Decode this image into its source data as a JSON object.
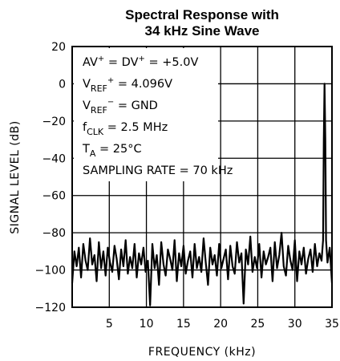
{
  "chart_data": {
    "type": "line",
    "title": [
      "Spectral Response with",
      "34 kHz Sine Wave"
    ],
    "xlabel": "FREQUENCY (kHz)",
    "ylabel": "SIGNAL LEVEL (dB)",
    "xlim": [
      0,
      35
    ],
    "ylim": [
      -120,
      20
    ],
    "xticks": [
      5,
      10,
      15,
      20,
      25,
      30,
      35
    ],
    "yticks": [
      20,
      0,
      -20,
      -40,
      -60,
      -80,
      -100,
      -120
    ],
    "grid": true,
    "annotations": [
      {
        "parts": [
          [
            "AV",
            ""
          ],
          [
            "+",
            "sup"
          ],
          [
            " = DV",
            ""
          ],
          [
            "+",
            "sup"
          ],
          [
            " = +5.0V",
            ""
          ]
        ]
      },
      {
        "parts": [
          [
            "V",
            ""
          ],
          [
            "REF",
            "sub"
          ],
          [
            "+",
            "sup"
          ],
          [
            " = 4.096V",
            ""
          ]
        ]
      },
      {
        "parts": [
          [
            "V",
            ""
          ],
          [
            "REF",
            "sub"
          ],
          [
            "−",
            "sup"
          ],
          [
            " = GND",
            ""
          ]
        ]
      },
      {
        "parts": [
          [
            "f",
            ""
          ],
          [
            "CLK",
            "sub"
          ],
          [
            " = 2.5 MHz",
            ""
          ]
        ]
      },
      {
        "parts": [
          [
            "T",
            ""
          ],
          [
            "A",
            "sub"
          ],
          [
            " = 25°C",
            ""
          ]
        ]
      },
      {
        "parts": [
          [
            "SAMPLING RATE = 70 kHz",
            ""
          ]
        ]
      }
    ],
    "series": [
      {
        "x": [
          0.0,
          0.3,
          0.6,
          0.9,
          1.2,
          1.5,
          1.8,
          2.1,
          2.4,
          2.7,
          3.0,
          3.3,
          3.6,
          3.9,
          4.2,
          4.5,
          4.8,
          5.1,
          5.4,
          5.7,
          6.0,
          6.3,
          6.6,
          6.9,
          7.2,
          7.5,
          7.8,
          8.1,
          8.4,
          8.7,
          9.0,
          9.3,
          9.6,
          9.9,
          10.2,
          10.5,
          10.8,
          11.1,
          11.4,
          11.7,
          12.0,
          12.3,
          12.6,
          12.9,
          13.2,
          13.5,
          13.8,
          14.1,
          14.4,
          14.7,
          15.0,
          15.3,
          15.6,
          15.9,
          16.2,
          16.5,
          16.8,
          17.1,
          17.4,
          17.7,
          18.0,
          18.3,
          18.6,
          18.9,
          19.2,
          19.5,
          19.8,
          20.1,
          20.4,
          20.7,
          21.0,
          21.3,
          21.6,
          21.9,
          22.2,
          22.5,
          22.8,
          23.1,
          23.4,
          23.7,
          24.0,
          24.3,
          24.6,
          24.9,
          25.2,
          25.5,
          25.8,
          26.1,
          26.4,
          26.7,
          27.0,
          27.3,
          27.6,
          27.9,
          28.2,
          28.5,
          28.8,
          29.1,
          29.4,
          29.7,
          30.0,
          30.3,
          30.6,
          30.9,
          31.2,
          31.5,
          31.8,
          32.1,
          32.4,
          32.7,
          33.0,
          33.3,
          33.6,
          33.8,
          33.9,
          34.0,
          34.1,
          34.2,
          34.4,
          34.7,
          35.0
        ],
        "values": [
          -107,
          -90,
          -98,
          -88,
          -104,
          -86,
          -95,
          -100,
          -83,
          -97,
          -92,
          -106,
          -85,
          -99,
          -90,
          -103,
          -88,
          -96,
          -101,
          -87,
          -94,
          -105,
          -89,
          -98,
          -84,
          -102,
          -93,
          -99,
          -86,
          -104,
          -91,
          -97,
          -88,
          -101,
          -95,
          -119,
          -86,
          -99,
          -92,
          -108,
          -85,
          -97,
          -103,
          -89,
          -94,
          -100,
          -84,
          -106,
          -91,
          -98,
          -87,
          -102,
          -95,
          -90,
          -104,
          -86,
          -99,
          -93,
          -101,
          -83,
          -96,
          -108,
          -88,
          -97,
          -92,
          -103,
          -86,
          -99,
          -94,
          -89,
          -105,
          -87,
          -98,
          -102,
          -85,
          -96,
          -91,
          -118,
          -89,
          -97,
          -82,
          -101,
          -93,
          -99,
          -86,
          -104,
          -90,
          -97,
          -93,
          -88,
          -106,
          -85,
          -99,
          -92,
          -80,
          -98,
          -103,
          -87,
          -95,
          -100,
          -84,
          -106,
          -90,
          -97,
          -88,
          -102,
          -94,
          -89,
          -101,
          -86,
          -98,
          -91,
          -95,
          -84,
          -30,
          0,
          -30,
          -84,
          -96,
          -88,
          -107
        ]
      }
    ]
  }
}
